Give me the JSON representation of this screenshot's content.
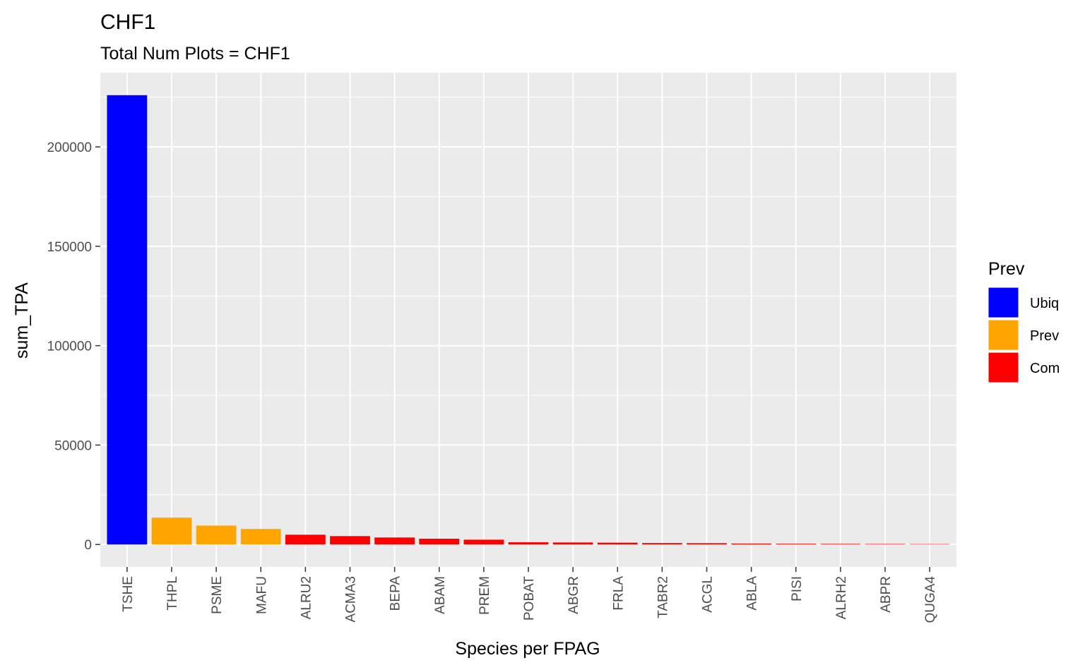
{
  "chart_data": {
    "type": "bar",
    "title": "CHF1",
    "subtitle": "Total Num Plots = CHF1",
    "xlabel": "Species per FPAG",
    "ylabel": "sum_TPA",
    "categories": [
      "TSHE",
      "THPL",
      "PSME",
      "MAFU",
      "ALRU2",
      "ACMA3",
      "BEPA",
      "ABAM",
      "PREM",
      "POBAT",
      "ABGR",
      "FRLA",
      "TABR2",
      "ACGL",
      "ABLA",
      "PISI",
      "ALRH2",
      "ABPR",
      "QUGA4"
    ],
    "values": [
      226000,
      13500,
      9500,
      7800,
      4900,
      4200,
      3500,
      2900,
      2400,
      1100,
      1000,
      900,
      700,
      650,
      450,
      350,
      300,
      250,
      200
    ],
    "groups": [
      "Ubiq",
      "Prev",
      "Prev",
      "Prev",
      "Com",
      "Com",
      "Com",
      "Com",
      "Com",
      "Com",
      "Com",
      "Com",
      "Com",
      "Com",
      "Com",
      "Com",
      "Com",
      "Com",
      "Com"
    ],
    "yticks": [
      0,
      50000,
      100000,
      150000,
      200000
    ],
    "yticklabels": [
      "0",
      "50000",
      "100000",
      "150000",
      "200000"
    ],
    "ylim": [
      -11300,
      237300
    ],
    "grid": true,
    "legend": {
      "title": "Prev",
      "placement": "right",
      "entries": [
        {
          "label": "Ubiq",
          "color": "#0000ff"
        },
        {
          "label": "Prev",
          "color": "#ffa500"
        },
        {
          "label": "Com",
          "color": "#ff0000"
        }
      ]
    },
    "panel_color": "#ebebeb",
    "grid_color": "#ffffff"
  }
}
